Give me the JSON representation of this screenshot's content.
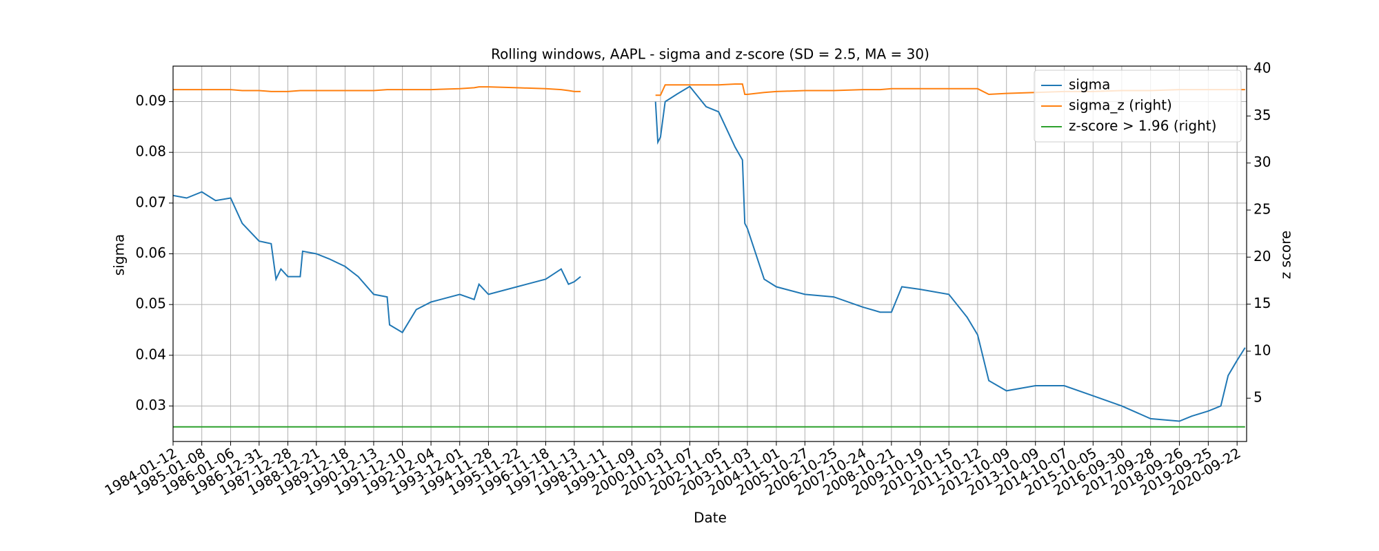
{
  "chart_data": {
    "type": "line",
    "title": "Rolling windows, AAPL - sigma and z-score (SD = 2.5, MA = 30)",
    "x_label": "Date",
    "y_label": "sigma",
    "y2_label": "z score",
    "x": [
      "1984-01-12",
      "1984-07",
      "1985-01-08",
      "1985-07",
      "1986-01-06",
      "1986-06",
      "1986-12-31",
      "1987-06",
      "1987-08",
      "1987-10",
      "1987-12-28",
      "1988-06",
      "1988-07",
      "1988-12-21",
      "1989-06",
      "1989-12-18",
      "1990-06",
      "1990-12-13",
      "1991-06",
      "1991-07",
      "1991-12-10",
      "1992-06",
      "1992-12-04",
      "1993-12-01",
      "1994-06",
      "1994-08",
      "1994-11-28",
      "1995-11-22",
      "1996-11-18",
      "1997-06",
      "1997-09",
      "1997-11-13",
      "1998-02",
      "1999-06",
      "2000-09",
      "2000-10",
      "2000-11-03",
      "2001-01",
      "2001-06",
      "2001-11-07",
      "2002-06",
      "2002-11-05",
      "2003-06",
      "2003-09",
      "2003-10",
      "2003-11-03",
      "2004-06",
      "2004-11-01",
      "2005-10-27",
      "2006-10-25",
      "2007-10-24",
      "2008-06",
      "2008-10-21",
      "2009-03",
      "2009-10-19",
      "2010-10-15",
      "2011-06",
      "2011-10-12",
      "2012-03",
      "2012-10-09",
      "2013-10-09",
      "2014-10-07",
      "2015-10-05",
      "2016-09-30",
      "2017-09-28",
      "2018-09-26",
      "2019-03",
      "2019-09-25",
      "2020-03",
      "2020-06",
      "2020-09-22",
      "2021-01"
    ],
    "series": [
      {
        "name": "sigma",
        "color": "#1f77b4",
        "values": [
          0.0715,
          0.071,
          0.0722,
          0.0705,
          0.071,
          0.066,
          0.0625,
          0.062,
          0.055,
          0.057,
          0.0555,
          0.0555,
          0.0605,
          0.06,
          0.059,
          0.0575,
          0.0555,
          0.052,
          0.0515,
          0.046,
          0.0445,
          0.049,
          0.0505,
          0.052,
          0.051,
          0.054,
          0.052,
          0.0535,
          0.055,
          0.057,
          0.054,
          0.0545,
          0.0555,
          null,
          0.09,
          0.082,
          0.083,
          0.09,
          0.0915,
          0.093,
          0.089,
          0.088,
          0.081,
          0.0785,
          0.066,
          0.065,
          0.055,
          0.0535,
          0.052,
          0.0515,
          0.0495,
          0.0485,
          0.0485,
          0.0535,
          0.053,
          0.052,
          0.0475,
          0.044,
          0.035,
          0.033,
          0.034,
          0.034,
          0.032,
          0.03,
          0.0275,
          0.027,
          0.028,
          0.029,
          0.03,
          0.036,
          0.039,
          0.0415
        ]
      },
      {
        "name": "sigma_z (right)",
        "color": "#ff7f0e",
        "axis": "y2",
        "values": [
          37.8,
          37.8,
          37.8,
          37.8,
          37.8,
          37.7,
          37.7,
          37.6,
          37.6,
          37.6,
          37.6,
          37.7,
          37.7,
          37.7,
          37.7,
          37.7,
          37.7,
          37.7,
          37.8,
          37.8,
          37.8,
          37.8,
          37.8,
          37.9,
          38.0,
          38.1,
          38.1,
          38.0,
          37.9,
          37.8,
          37.7,
          37.6,
          37.6,
          null,
          37.2,
          37.2,
          37.2,
          38.3,
          38.3,
          38.3,
          38.3,
          38.3,
          38.4,
          38.4,
          37.3,
          37.3,
          37.5,
          37.6,
          37.7,
          37.7,
          37.8,
          37.8,
          37.9,
          37.9,
          37.9,
          37.9,
          37.9,
          37.9,
          37.3,
          37.4,
          37.5,
          37.6,
          37.6,
          37.7,
          37.7,
          37.8,
          37.8,
          37.8,
          37.8,
          37.8,
          37.8,
          37.8
        ]
      },
      {
        "name": "z-score > 1.96 (right)",
        "color": "#2ca02c",
        "axis": "y2",
        "values": [
          1.96,
          1.96,
          1.96,
          1.96,
          1.96,
          1.96,
          1.96,
          1.96,
          1.96,
          1.96,
          1.96,
          1.96,
          1.96,
          1.96,
          1.96,
          1.96,
          1.96,
          1.96,
          1.96,
          1.96,
          1.96,
          1.96,
          1.96,
          1.96,
          1.96,
          1.96,
          1.96,
          1.96,
          1.96,
          1.96,
          1.96,
          1.96,
          1.96,
          1.96,
          1.96,
          1.96,
          1.96,
          1.96,
          1.96,
          1.96,
          1.96,
          1.96,
          1.96,
          1.96,
          1.96,
          1.96,
          1.96,
          1.96,
          1.96,
          1.96,
          1.96,
          1.96,
          1.96,
          1.96,
          1.96,
          1.96,
          1.96,
          1.96,
          1.96,
          1.96,
          1.96,
          1.96,
          1.96,
          1.96,
          1.96,
          1.96,
          1.96,
          1.96,
          1.96,
          1.96,
          1.96,
          1.96
        ]
      }
    ],
    "xlim": [
      "1984-01-12",
      "2021-01-20"
    ],
    "xticks": [
      "1984-01-12",
      "1985-01-08",
      "1986-01-06",
      "1986-12-31",
      "1987-12-28",
      "1988-12-21",
      "1989-12-18",
      "1990-12-13",
      "1991-12-10",
      "1992-12-04",
      "1993-12-01",
      "1994-11-28",
      "1995-11-22",
      "1996-11-18",
      "1997-11-13",
      "1998-11-11",
      "1999-11-09",
      "2000-11-03",
      "2001-11-07",
      "2002-11-05",
      "2003-11-03",
      "2004-11-01",
      "2005-10-27",
      "2006-10-25",
      "2007-10-24",
      "2008-10-21",
      "2009-10-19",
      "2010-10-15",
      "2011-10-12",
      "2012-10-09",
      "2013-10-09",
      "2014-10-07",
      "2015-10-05",
      "2016-09-30",
      "2017-09-28",
      "2018-09-26",
      "2019-09-25",
      "2020-09-22"
    ],
    "ylim": [
      0.023,
      0.097
    ],
    "yticks": [
      0.03,
      0.04,
      0.05,
      0.06,
      0.07,
      0.08,
      0.09
    ],
    "y2lim": [
      0.4,
      40.3
    ],
    "y2ticks": [
      5,
      10,
      15,
      20,
      25,
      30,
      35,
      40
    ],
    "grid": true,
    "legend": "upper right"
  }
}
